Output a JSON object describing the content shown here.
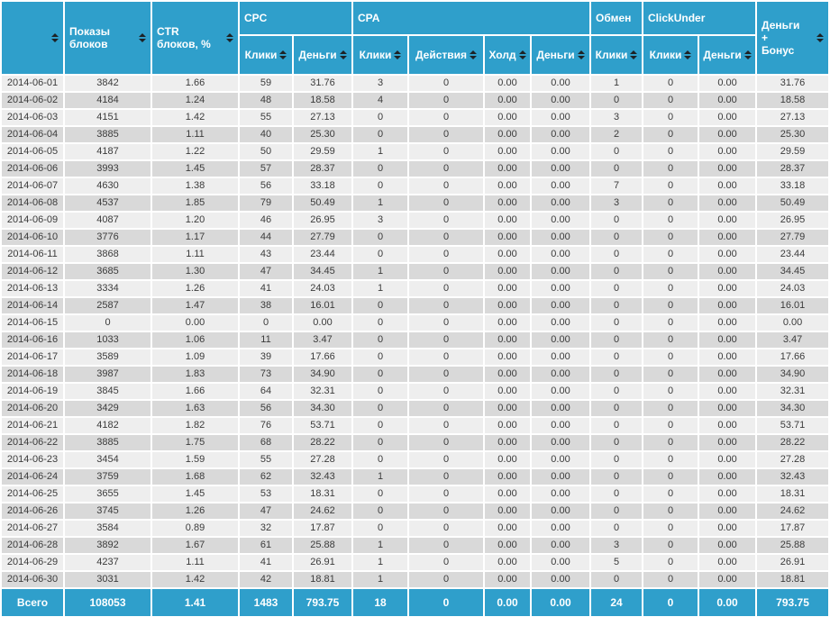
{
  "colors": {
    "header_bg": "#2f9fcb",
    "footer_bg": "#2f9fcb",
    "row_light": "#eeeeee",
    "row_dark": "#d9d9d9",
    "header_text": "#ffffff",
    "body_text": "#3b3b3b",
    "sort_icon": "#1d2225"
  },
  "table": {
    "header": {
      "date_label": "",
      "impressions": "Показы\nблоков",
      "ctr": "CTR\nблоков, %",
      "money_bonus": "Деньги\n+\nБонус",
      "groups": {
        "cpc": "CPC",
        "cpa": "CPA",
        "exchange": "Обмен",
        "clickunder": "ClickUnder"
      },
      "sub": {
        "clicks": "Клики",
        "money": "Деньги",
        "actions": "Действия",
        "hold": "Холд"
      }
    },
    "column_keys": [
      "date",
      "impressions",
      "ctr",
      "cpc-clicks",
      "cpc-money",
      "cpa-clicks",
      "cpa-actions",
      "cpa-hold",
      "cpa-money",
      "exchange-clicks",
      "clickunder-clicks",
      "clickunder-money",
      "money-bonus"
    ],
    "rows": [
      [
        "2014-06-01",
        "3842",
        "1.66",
        "59",
        "31.76",
        "3",
        "0",
        "0.00",
        "0.00",
        "1",
        "0",
        "0.00",
        "31.76"
      ],
      [
        "2014-06-02",
        "4184",
        "1.24",
        "48",
        "18.58",
        "4",
        "0",
        "0.00",
        "0.00",
        "0",
        "0",
        "0.00",
        "18.58"
      ],
      [
        "2014-06-03",
        "4151",
        "1.42",
        "55",
        "27.13",
        "0",
        "0",
        "0.00",
        "0.00",
        "3",
        "0",
        "0.00",
        "27.13"
      ],
      [
        "2014-06-04",
        "3885",
        "1.11",
        "40",
        "25.30",
        "0",
        "0",
        "0.00",
        "0.00",
        "2",
        "0",
        "0.00",
        "25.30"
      ],
      [
        "2014-06-05",
        "4187",
        "1.22",
        "50",
        "29.59",
        "1",
        "0",
        "0.00",
        "0.00",
        "0",
        "0",
        "0.00",
        "29.59"
      ],
      [
        "2014-06-06",
        "3993",
        "1.45",
        "57",
        "28.37",
        "0",
        "0",
        "0.00",
        "0.00",
        "0",
        "0",
        "0.00",
        "28.37"
      ],
      [
        "2014-06-07",
        "4630",
        "1.38",
        "56",
        "33.18",
        "0",
        "0",
        "0.00",
        "0.00",
        "7",
        "0",
        "0.00",
        "33.18"
      ],
      [
        "2014-06-08",
        "4537",
        "1.85",
        "79",
        "50.49",
        "1",
        "0",
        "0.00",
        "0.00",
        "3",
        "0",
        "0.00",
        "50.49"
      ],
      [
        "2014-06-09",
        "4087",
        "1.20",
        "46",
        "26.95",
        "3",
        "0",
        "0.00",
        "0.00",
        "0",
        "0",
        "0.00",
        "26.95"
      ],
      [
        "2014-06-10",
        "3776",
        "1.17",
        "44",
        "27.79",
        "0",
        "0",
        "0.00",
        "0.00",
        "0",
        "0",
        "0.00",
        "27.79"
      ],
      [
        "2014-06-11",
        "3868",
        "1.11",
        "43",
        "23.44",
        "0",
        "0",
        "0.00",
        "0.00",
        "0",
        "0",
        "0.00",
        "23.44"
      ],
      [
        "2014-06-12",
        "3685",
        "1.30",
        "47",
        "34.45",
        "1",
        "0",
        "0.00",
        "0.00",
        "0",
        "0",
        "0.00",
        "34.45"
      ],
      [
        "2014-06-13",
        "3334",
        "1.26",
        "41",
        "24.03",
        "1",
        "0",
        "0.00",
        "0.00",
        "0",
        "0",
        "0.00",
        "24.03"
      ],
      [
        "2014-06-14",
        "2587",
        "1.47",
        "38",
        "16.01",
        "0",
        "0",
        "0.00",
        "0.00",
        "0",
        "0",
        "0.00",
        "16.01"
      ],
      [
        "2014-06-15",
        "0",
        "0.00",
        "0",
        "0.00",
        "0",
        "0",
        "0.00",
        "0.00",
        "0",
        "0",
        "0.00",
        "0.00"
      ],
      [
        "2014-06-16",
        "1033",
        "1.06",
        "11",
        "3.47",
        "0",
        "0",
        "0.00",
        "0.00",
        "0",
        "0",
        "0.00",
        "3.47"
      ],
      [
        "2014-06-17",
        "3589",
        "1.09",
        "39",
        "17.66",
        "0",
        "0",
        "0.00",
        "0.00",
        "0",
        "0",
        "0.00",
        "17.66"
      ],
      [
        "2014-06-18",
        "3987",
        "1.83",
        "73",
        "34.90",
        "0",
        "0",
        "0.00",
        "0.00",
        "0",
        "0",
        "0.00",
        "34.90"
      ],
      [
        "2014-06-19",
        "3845",
        "1.66",
        "64",
        "32.31",
        "0",
        "0",
        "0.00",
        "0.00",
        "0",
        "0",
        "0.00",
        "32.31"
      ],
      [
        "2014-06-20",
        "3429",
        "1.63",
        "56",
        "34.30",
        "0",
        "0",
        "0.00",
        "0.00",
        "0",
        "0",
        "0.00",
        "34.30"
      ],
      [
        "2014-06-21",
        "4182",
        "1.82",
        "76",
        "53.71",
        "0",
        "0",
        "0.00",
        "0.00",
        "0",
        "0",
        "0.00",
        "53.71"
      ],
      [
        "2014-06-22",
        "3885",
        "1.75",
        "68",
        "28.22",
        "0",
        "0",
        "0.00",
        "0.00",
        "0",
        "0",
        "0.00",
        "28.22"
      ],
      [
        "2014-06-23",
        "3454",
        "1.59",
        "55",
        "27.28",
        "0",
        "0",
        "0.00",
        "0.00",
        "0",
        "0",
        "0.00",
        "27.28"
      ],
      [
        "2014-06-24",
        "3759",
        "1.68",
        "62",
        "32.43",
        "1",
        "0",
        "0.00",
        "0.00",
        "0",
        "0",
        "0.00",
        "32.43"
      ],
      [
        "2014-06-25",
        "3655",
        "1.45",
        "53",
        "18.31",
        "0",
        "0",
        "0.00",
        "0.00",
        "0",
        "0",
        "0.00",
        "18.31"
      ],
      [
        "2014-06-26",
        "3745",
        "1.26",
        "47",
        "24.62",
        "0",
        "0",
        "0.00",
        "0.00",
        "0",
        "0",
        "0.00",
        "24.62"
      ],
      [
        "2014-06-27",
        "3584",
        "0.89",
        "32",
        "17.87",
        "0",
        "0",
        "0.00",
        "0.00",
        "0",
        "0",
        "0.00",
        "17.87"
      ],
      [
        "2014-06-28",
        "3892",
        "1.67",
        "61",
        "25.88",
        "1",
        "0",
        "0.00",
        "0.00",
        "3",
        "0",
        "0.00",
        "25.88"
      ],
      [
        "2014-06-29",
        "4237",
        "1.11",
        "41",
        "26.91",
        "1",
        "0",
        "0.00",
        "0.00",
        "5",
        "0",
        "0.00",
        "26.91"
      ],
      [
        "2014-06-30",
        "3031",
        "1.42",
        "42",
        "18.81",
        "1",
        "0",
        "0.00",
        "0.00",
        "0",
        "0",
        "0.00",
        "18.81"
      ]
    ],
    "footer": {
      "label": "Всего",
      "values": [
        "108053",
        "1.41",
        "1483",
        "793.75",
        "18",
        "0",
        "0.00",
        "0.00",
        "24",
        "0",
        "0.00",
        "793.75"
      ]
    }
  }
}
